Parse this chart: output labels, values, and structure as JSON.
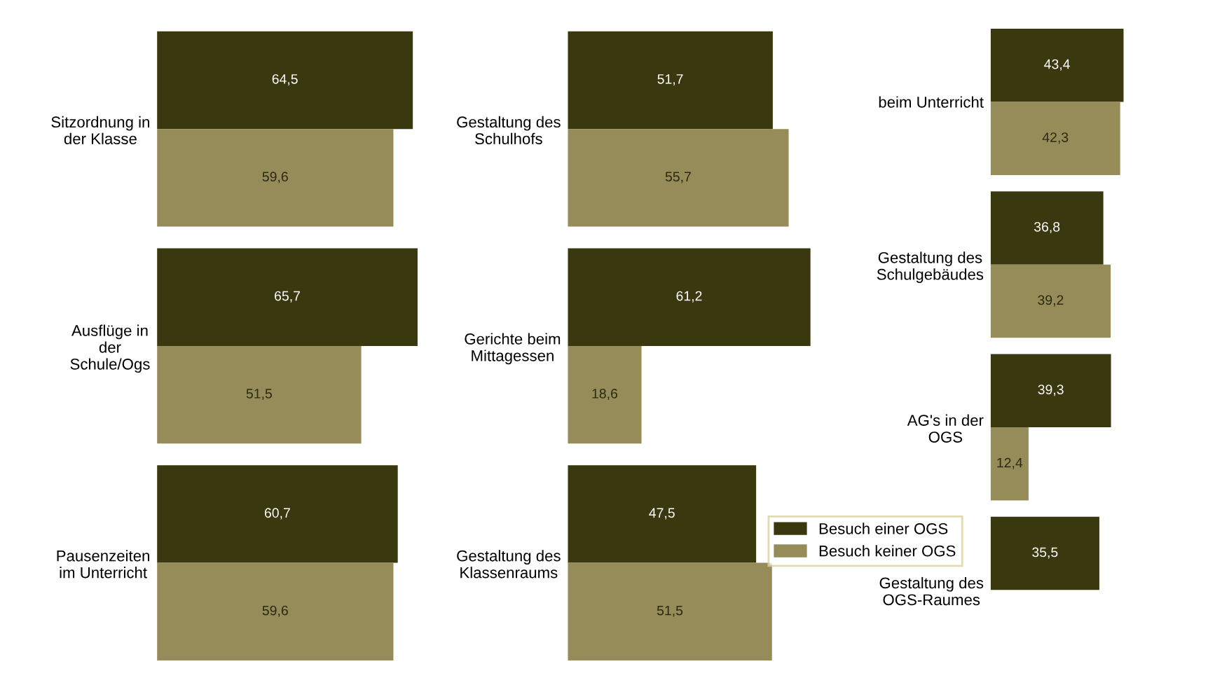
{
  "chart_data": [
    {
      "type": "bar",
      "orientation": "horizontal",
      "categories": [
        "Sitzordnung in\nder Klasse",
        "Ausflüge in\nder\nSchule/Ogs",
        "Pausenzeiten\nim Unterricht"
      ],
      "series": [
        {
          "color": "#3a380e",
          "values": [
            64.5,
            65.7,
            60.7
          ],
          "value_labels": [
            "64,5",
            "65,7",
            "60,7"
          ]
        },
        {
          "color": "#968c5a",
          "values": [
            59.6,
            51.5,
            59.6
          ],
          "value_labels": [
            "59,6",
            "51,5",
            "59,6"
          ]
        }
      ],
      "grid": false
    },
    {
      "type": "bar",
      "orientation": "horizontal",
      "categories": [
        "Gestaltung des\nSchulhofs",
        "Gerichte beim\nMittagessen",
        "Gestaltung des\nKlassenraums"
      ],
      "series": [
        {
          "color": "#3a380e",
          "values": [
            51.7,
            61.2,
            47.5
          ],
          "value_labels": [
            "51,7",
            "61,2",
            "47,5"
          ]
        },
        {
          "color": "#968c5a",
          "values": [
            55.7,
            18.6,
            51.5
          ],
          "value_labels": [
            "55,7",
            "18,6",
            "51,5"
          ]
        }
      ],
      "grid": false
    },
    {
      "type": "bar",
      "orientation": "horizontal",
      "categories": [
        "beim Unterricht",
        "Gestaltung des\nSchulgebäudes",
        "AG's in der\nOGS",
        "Gestaltung des\nOGS-Raumes"
      ],
      "series": [
        {
          "name": "Besuch einer OGS",
          "color": "#3a380e",
          "values": [
            43.4,
            36.8,
            39.3,
            35.5
          ],
          "value_labels": [
            "43,4",
            "36,8",
            "39,3",
            "35,5"
          ]
        },
        {
          "name": "Besuch keiner OGS",
          "color": "#968c5a",
          "values": [
            42.3,
            39.2,
            12.4,
            null
          ],
          "value_labels": [
            "42,3",
            "39,2",
            "12,4",
            null
          ]
        }
      ],
      "grid": false,
      "legend": "left"
    }
  ]
}
